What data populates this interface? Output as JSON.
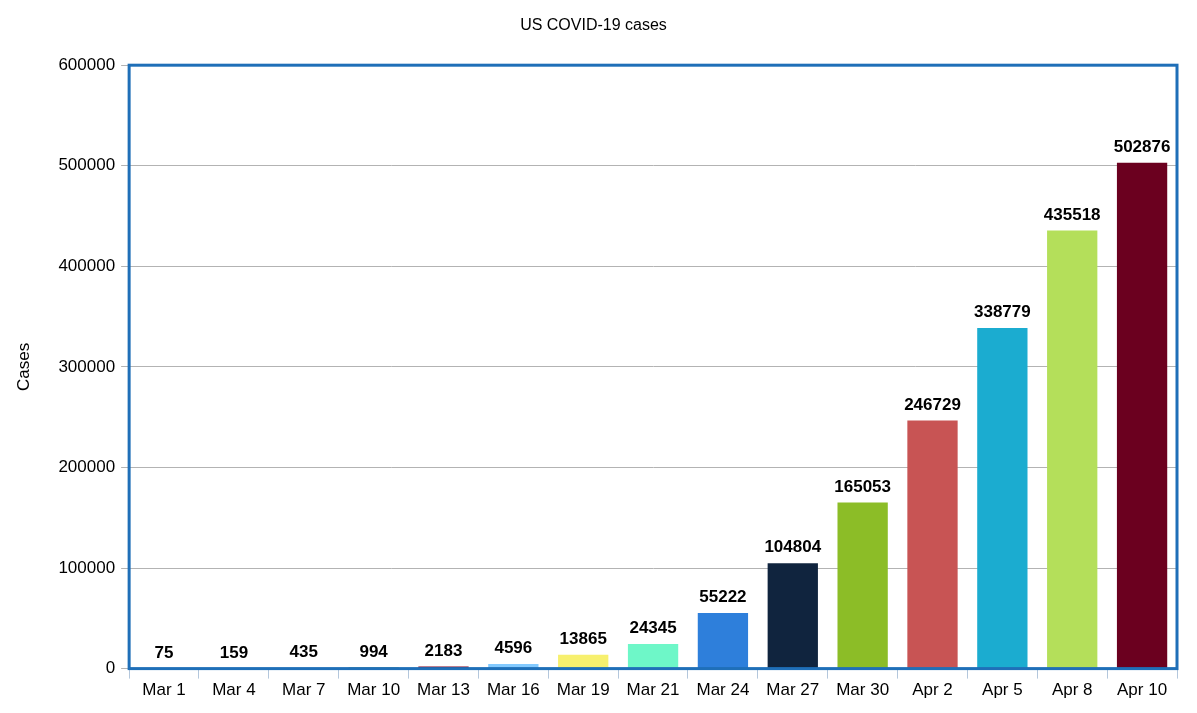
{
  "chart_data": {
    "type": "bar",
    "title": "US COVID-19 cases",
    "y_label": "Cases",
    "categories": [
      "Mar 1",
      "Mar 4",
      "Mar 7",
      "Mar 10",
      "Mar 13",
      "Mar 16",
      "Mar 19",
      "Mar 21",
      "Mar 24",
      "Mar 27",
      "Mar 30",
      "Apr 2",
      "Apr 5",
      "Apr 8",
      "Apr 10"
    ],
    "values": [
      75,
      159,
      435,
      994,
      2183,
      4596,
      13865,
      24345,
      55222,
      104804,
      165053,
      246729,
      338779,
      435518,
      502876
    ],
    "colors": [
      "#004586",
      "#ff420e",
      "#ffd320",
      "#579d1c",
      "#7e0021",
      "#83caff",
      "#f7f06e",
      "#6ef7c8",
      "#2e7fdb",
      "#10243e",
      "#8cbd27",
      "#c85454",
      "#1bacd0",
      "#b4df5a",
      "#6b001f"
    ],
    "ylim": [
      0,
      600000
    ],
    "yticks": [
      0,
      100000,
      200000,
      300000,
      400000,
      500000,
      600000
    ],
    "grid": true,
    "data_labels": true
  }
}
